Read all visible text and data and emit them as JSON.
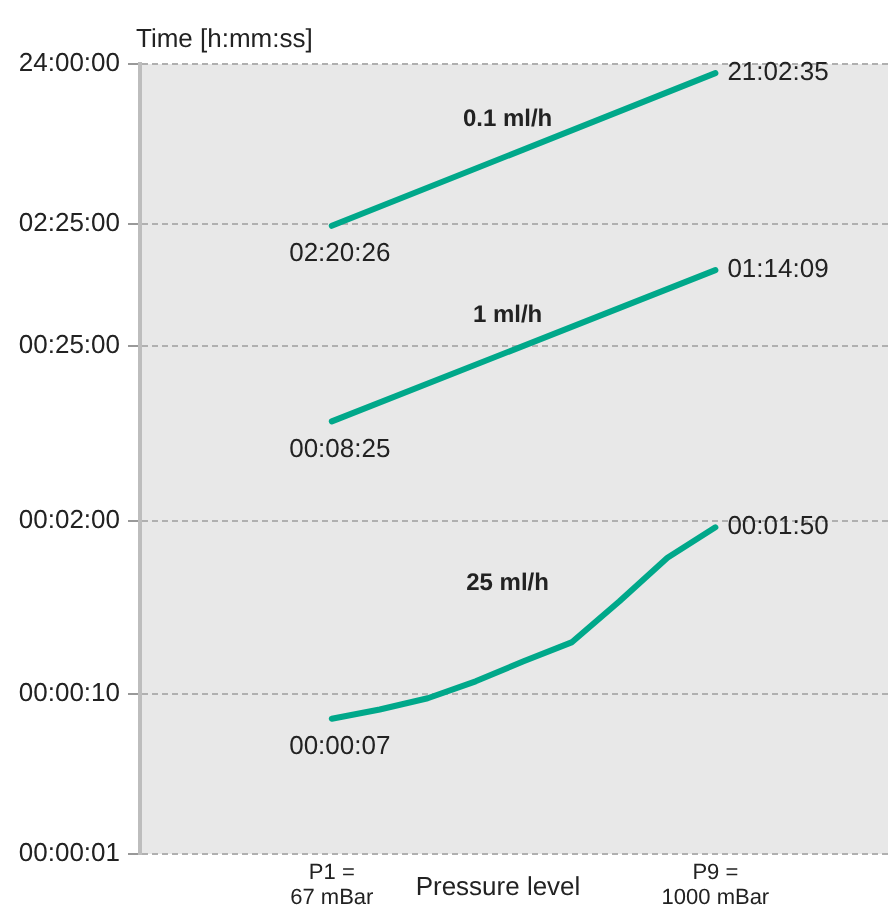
{
  "chart_data": {
    "type": "line",
    "ylabel": "Time [h:mm:ss]",
    "xlabel": "Pressure level",
    "categories": [
      "P1 =\n67 mBar",
      null,
      null,
      null,
      null,
      null,
      null,
      null,
      "P9 =\n1000 mBar"
    ],
    "log": "y",
    "ylim": [
      1,
      86400
    ],
    "yticks": [
      {
        "value": 1,
        "label": "00:00:01"
      },
      {
        "value": 10,
        "label": "00:00:10"
      },
      {
        "value": 120,
        "label": "00:02:00"
      },
      {
        "value": 1500,
        "label": "00:25:00"
      },
      {
        "value": 8700,
        "label": "02:25:00"
      },
      {
        "value": 86400,
        "label": "24:00:00"
      }
    ],
    "grid": "y",
    "legend": false,
    "marker": "none",
    "line_style": "solid",
    "series": [
      {
        "name": "0.1 ml/h",
        "color": "#00a88a",
        "values": [
          8426,
          null,
          null,
          null,
          null,
          null,
          null,
          null,
          75755
        ],
        "value_labels": [
          "02:20:26",
          null,
          null,
          null,
          null,
          null,
          null,
          null,
          "21:02:35"
        ]
      },
      {
        "name": "1 ml/h",
        "color": "#00a88a",
        "values": [
          505,
          null,
          null,
          null,
          null,
          null,
          null,
          null,
          4449
        ],
        "value_labels": [
          "00:08:25",
          null,
          null,
          null,
          null,
          null,
          null,
          null,
          "01:14:09"
        ]
      },
      {
        "name": "25 ml/h",
        "color": "#00a88a",
        "values": [
          7,
          8,
          9.4,
          12,
          16,
          21,
          38,
          71,
          110
        ],
        "value_labels": [
          "00:00:07",
          null,
          null,
          null,
          null,
          null,
          null,
          null,
          "00:01:50"
        ]
      }
    ]
  }
}
